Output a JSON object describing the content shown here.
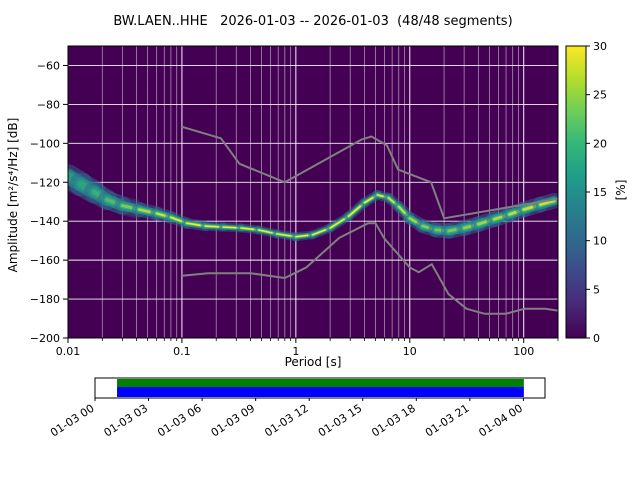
{
  "chart_data": {
    "type": "heatmap",
    "title": "BW.LAEN..HHE   2026-01-03 -- 2026-01-03  (48/48 segments)",
    "xlabel": "Period [s]",
    "ylabel": "Amplitude [m²/s⁴/Hz] [dB]",
    "xscale": "log",
    "xlim": [
      0.01,
      200
    ],
    "ylim": [
      -200,
      -50
    ],
    "grid": true,
    "xticks": {
      "values": [
        0.01,
        0.1,
        1,
        10,
        100
      ],
      "labels": [
        "0.01",
        "0.1",
        "1",
        "10",
        "100"
      ]
    },
    "yticks": [
      -200,
      -180,
      -160,
      -140,
      -120,
      -100,
      -80,
      -60
    ],
    "colorbar": {
      "label": "[%]",
      "range": [
        0,
        30
      ],
      "ticks": [
        0,
        5,
        10,
        15,
        20,
        25,
        30
      ]
    },
    "psd_mode": {
      "columns": [
        "period_s",
        "amplitude_db",
        "half_spread_db",
        "relative_probability"
      ],
      "points": [
        [
          0.01,
          -117.0,
          5.0,
          0.35
        ],
        [
          0.013,
          -121.0,
          5.0,
          0.35
        ],
        [
          0.017,
          -125.0,
          4.5,
          0.4
        ],
        [
          0.022,
          -129.0,
          4.0,
          0.45
        ],
        [
          0.03,
          -132.0,
          3.5,
          0.55
        ],
        [
          0.042,
          -134.0,
          3.0,
          0.7
        ],
        [
          0.06,
          -136.0,
          2.8,
          0.85
        ],
        [
          0.08,
          -138.0,
          2.5,
          0.9
        ],
        [
          0.11,
          -141.0,
          2.2,
          0.95
        ],
        [
          0.16,
          -142.5,
          2.0,
          1.0
        ],
        [
          0.23,
          -143.0,
          1.8,
          1.0
        ],
        [
          0.33,
          -143.5,
          1.8,
          1.0
        ],
        [
          0.47,
          -144.5,
          1.8,
          1.0
        ],
        [
          0.68,
          -146.5,
          1.8,
          1.0
        ],
        [
          1.0,
          -148.0,
          1.8,
          1.0
        ],
        [
          1.4,
          -147.0,
          1.8,
          1.0
        ],
        [
          2.0,
          -143.5,
          1.8,
          1.0
        ],
        [
          2.9,
          -137.5,
          2.0,
          1.0
        ],
        [
          4.0,
          -130.5,
          2.0,
          1.0
        ],
        [
          5.2,
          -126.5,
          2.0,
          1.0
        ],
        [
          6.5,
          -128.0,
          2.0,
          0.95
        ],
        [
          8.0,
          -132.5,
          2.2,
          0.9
        ],
        [
          10.0,
          -138.5,
          2.5,
          0.8
        ],
        [
          13.0,
          -142.5,
          2.8,
          0.7
        ],
        [
          17.0,
          -144.5,
          3.0,
          0.6
        ],
        [
          22.0,
          -145.0,
          3.2,
          0.6
        ],
        [
          30.0,
          -143.5,
          3.2,
          0.65
        ],
        [
          40.0,
          -141.5,
          3.2,
          0.7
        ],
        [
          55.0,
          -139.0,
          3.2,
          0.75
        ],
        [
          75.0,
          -136.5,
          3.2,
          0.8
        ],
        [
          100.0,
          -134.0,
          3.2,
          0.85
        ],
        [
          140.0,
          -131.5,
          3.2,
          0.85
        ],
        [
          185.0,
          -129.5,
          3.2,
          0.85
        ]
      ]
    },
    "noise_models": {
      "name": "Peterson high/low noise models",
      "high": [
        [
          0.1,
          -91.5
        ],
        [
          0.22,
          -97.4
        ],
        [
          0.32,
          -110.5
        ],
        [
          0.8,
          -120.0
        ],
        [
          3.8,
          -98.0
        ],
        [
          4.6,
          -96.5
        ],
        [
          6.3,
          -101.0
        ],
        [
          7.9,
          -113.5
        ],
        [
          15.4,
          -120.0
        ],
        [
          20.0,
          -138.5
        ],
        [
          200.0,
          -128.5
        ]
      ],
      "low": [
        [
          0.1,
          -168.0
        ],
        [
          0.17,
          -166.7
        ],
        [
          0.4,
          -166.7
        ],
        [
          0.8,
          -169.2
        ],
        [
          1.24,
          -163.7
        ],
        [
          2.4,
          -148.6
        ],
        [
          4.3,
          -141.1
        ],
        [
          5.0,
          -141.1
        ],
        [
          6.0,
          -149.0
        ],
        [
          10.0,
          -163.8
        ],
        [
          12.0,
          -166.2
        ],
        [
          15.6,
          -162.1
        ],
        [
          21.9,
          -177.5
        ],
        [
          31.6,
          -185.0
        ],
        [
          45.0,
          -187.5
        ],
        [
          70.0,
          -187.5
        ],
        [
          101.0,
          -185.0
        ],
        [
          154.0,
          -185.0
        ],
        [
          200.0,
          -185.9
        ]
      ]
    }
  },
  "colors": {
    "background": "#440154",
    "grid": "#ffffff",
    "noise_model": "#808080",
    "frame": "#000000",
    "colorbar_stops": [
      "#440154",
      "#482878",
      "#3e4989",
      "#31688e",
      "#26828e",
      "#1f9e89",
      "#35b779",
      "#6ece58",
      "#b5de2b",
      "#fde725"
    ]
  },
  "timeline": {
    "tick_labels": [
      "01-03 00",
      "01-03 03",
      "01-03 06",
      "01-03 09",
      "01-03 12",
      "01-03 15",
      "01-03 18",
      "01-03 21",
      "01-04 00"
    ],
    "ticks_end_frac": 0.952,
    "coverage_start_frac": 0.049,
    "coverage_end_frac": 0.953,
    "bar_colors": {
      "top": "#008000",
      "bottom": "#0000ff"
    }
  }
}
